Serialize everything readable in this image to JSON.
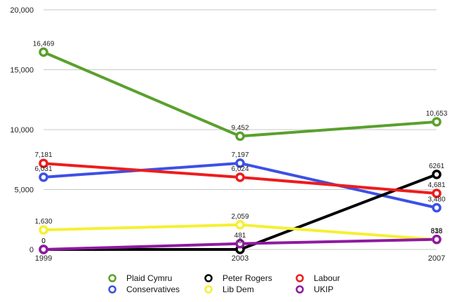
{
  "chart_data": {
    "type": "line",
    "x": [
      "1999",
      "2003",
      "2007"
    ],
    "ylim": [
      0,
      20000
    ],
    "yticks": [
      0,
      5000,
      10000,
      15000,
      20000
    ],
    "ytick_labels": [
      "0",
      "5,000",
      "10,000",
      "15,000",
      "20,000"
    ],
    "grid": true,
    "legend_placement": "bottom",
    "series": [
      {
        "name": "Plaid Cymru",
        "color": "#5aa02c",
        "values": [
          16469,
          9452,
          10653
        ],
        "labels": [
          "16,469",
          "9,452",
          "10,653"
        ]
      },
      {
        "name": "Conservatives",
        "color": "#3c50e6",
        "values": [
          6031,
          7197,
          3480
        ],
        "labels": [
          "6,031",
          "7,197",
          "3,480"
        ]
      },
      {
        "name": "Peter Rogers",
        "color": "#000000",
        "values": [
          0,
          0,
          6261
        ],
        "labels": [
          "0",
          "0",
          "6261"
        ]
      },
      {
        "name": "Lib Dem",
        "color": "#f5f032",
        "values": [
          1630,
          2059,
          818
        ],
        "labels": [
          "1,630",
          "2,059",
          "818"
        ]
      },
      {
        "name": "Labour",
        "color": "#ee1c1c",
        "values": [
          7181,
          6024,
          4681
        ],
        "labels": [
          "7,181",
          "6,024",
          "4,681"
        ]
      },
      {
        "name": "UKIP",
        "color": "#8e1aa0",
        "values": [
          0,
          481,
          838
        ],
        "labels": [
          "0",
          "481",
          "838"
        ]
      }
    ]
  }
}
